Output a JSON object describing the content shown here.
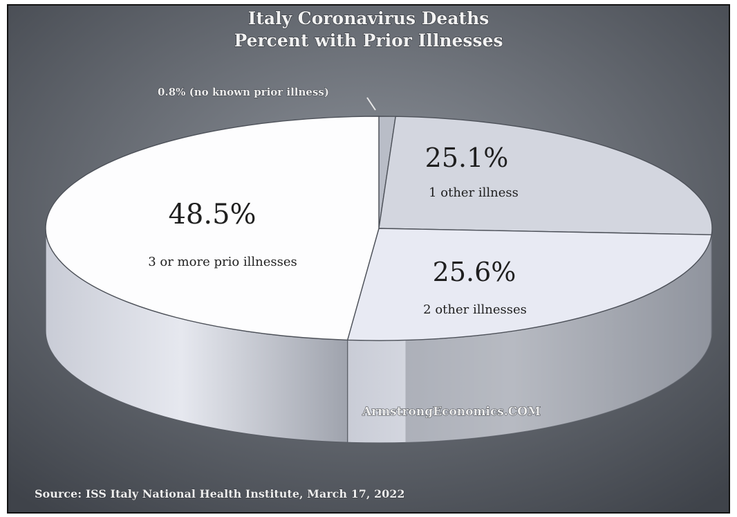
{
  "colors": {
    "background_center": "#8e939b",
    "background_edge": "#3f434a",
    "slice_3plus": "#fdfdfe",
    "slice_1": "#d3d6df",
    "slice_2": "#e8eaf3",
    "slice_none": "#b9bdc7"
  },
  "chart_data": {
    "type": "pie",
    "title": "Italy Coronavirus Deaths",
    "subtitle": "Percent with Prior Illnesses",
    "slices": [
      {
        "label": "0.8% (no known prior illness)",
        "percent_text": "",
        "value": 0.8,
        "description": ""
      },
      {
        "label": "",
        "percent_text": "25.1%",
        "value": 25.1,
        "description": "1 other illness"
      },
      {
        "label": "",
        "percent_text": "25.6%",
        "value": 25.6,
        "description": "2 other illnesses"
      },
      {
        "label": "",
        "percent_text": "48.5%",
        "value": 48.5,
        "description": "3 or more prio illnesses"
      }
    ],
    "watermark": "ArmstrongEconomics.COM",
    "source": "Source: ISS Italy National Health Institute, March 17, 2022"
  }
}
